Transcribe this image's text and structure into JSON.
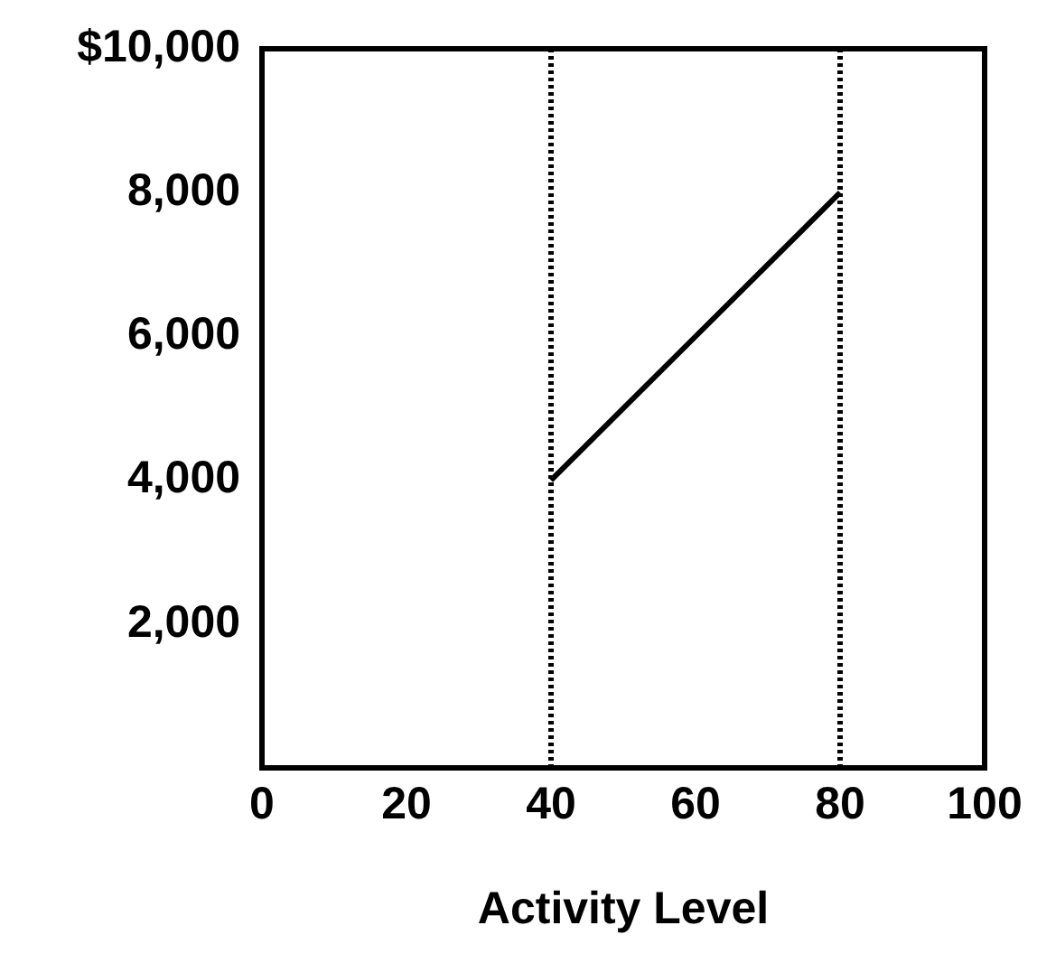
{
  "chart_data": {
    "type": "line",
    "xlabel": "Activity Level",
    "x": [
      40,
      80
    ],
    "series": [
      {
        "color": "#000000",
        "values": [
          4000,
          8000
        ]
      }
    ],
    "xlim": [
      0,
      100
    ],
    "xticks": [
      0,
      20,
      40,
      60,
      80,
      100
    ],
    "ylim": [
      0,
      10000
    ],
    "yticks": [
      {
        "value": 2000,
        "label": "2,000"
      },
      {
        "value": 4000,
        "label": "4,000"
      },
      {
        "value": 6000,
        "label": "6,000"
      },
      {
        "value": 8000,
        "label": "8,000"
      },
      {
        "value": 10000,
        "label": "$10,000"
      }
    ],
    "ref_lines": [
      {
        "axis": "x",
        "value": 40,
        "color": "#000000",
        "line_style": "dotted"
      },
      {
        "axis": "x",
        "value": 80,
        "color": "#000000",
        "line_style": "dotted"
      }
    ],
    "grid": false,
    "legend": false,
    "marker": "none",
    "line_style": "solid"
  }
}
